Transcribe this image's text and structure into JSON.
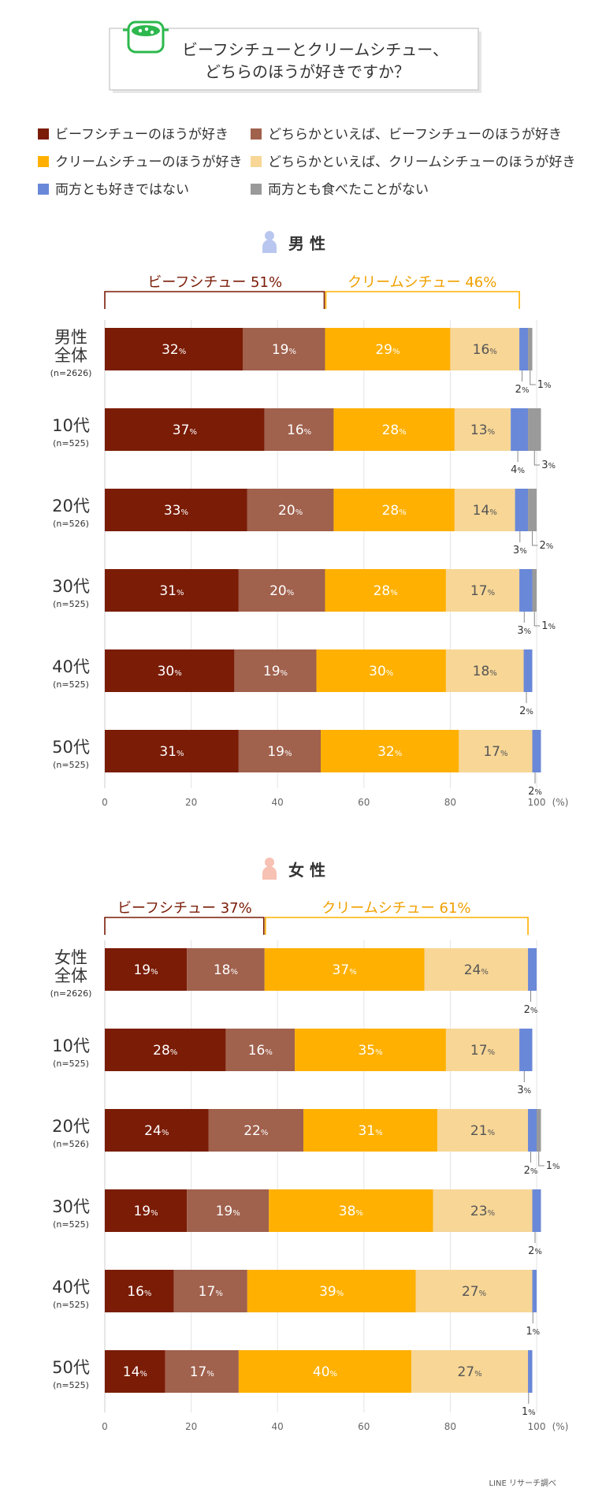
{
  "title_lines": [
    "ビーフシチューとクリームシチュー、",
    "どちらのほうが好きですか？"
  ],
  "colors": {
    "beef": "#7a1c06",
    "rather_beef": "#a0614d",
    "cream": "#ffb000",
    "rather_cream": "#f7d696",
    "neither": "#6a88d8",
    "never_eaten": "#9a9a9a",
    "beef_text": "#7a1c06",
    "cream_text": "#f0a000",
    "icon_green": "#2db84d"
  },
  "chart_data": {
    "type": "bar",
    "orientation": "horizontal",
    "stacked": true,
    "legend": [
      {
        "key": "beef",
        "label": "ビーフシチューのほうが好き"
      },
      {
        "key": "rather_beef",
        "label": "どちらかといえば、ビーフシチューのほうが好き"
      },
      {
        "key": "cream",
        "label": "クリームシチューのほうが好き"
      },
      {
        "key": "rather_cream",
        "label": "どちらかといえば、クリームシチューのほうが好き"
      },
      {
        "key": "neither",
        "label": "両方とも好きではない"
      },
      {
        "key": "never_eaten",
        "label": "両方とも食べたことがない"
      }
    ],
    "x_ticks": [
      "0",
      "20",
      "40",
      "60",
      "80",
      "100"
    ],
    "x_unit": "(%)",
    "xlim": [
      0,
      100
    ],
    "source": "LINE リサーチ調べ",
    "panels": [
      {
        "section_label": "男 性",
        "beef_total_label": "ビーフシチュー 51%",
        "cream_total_label": "クリームシチュー 46%",
        "beef_total": 51,
        "rows": [
          {
            "label_lines": [
              "男性",
              "全体"
            ],
            "n": "(n=2626)",
            "values": [
              32,
              19,
              29,
              16,
              2,
              1
            ]
          },
          {
            "label_lines": [
              "10代"
            ],
            "n": "(n=525)",
            "values": [
              37,
              16,
              28,
              13,
              4,
              3
            ]
          },
          {
            "label_lines": [
              "20代"
            ],
            "n": "(n=526)",
            "values": [
              33,
              20,
              28,
              14,
              3,
              2
            ]
          },
          {
            "label_lines": [
              "30代"
            ],
            "n": "(n=525)",
            "values": [
              31,
              20,
              28,
              17,
              3,
              1
            ]
          },
          {
            "label_lines": [
              "40代"
            ],
            "n": "(n=525)",
            "values": [
              30,
              19,
              30,
              18,
              2,
              0
            ]
          },
          {
            "label_lines": [
              "50代"
            ],
            "n": "(n=525)",
            "values": [
              31,
              19,
              32,
              17,
              2,
              0
            ]
          }
        ]
      },
      {
        "section_label": "女 性",
        "beef_total_label": "ビーフシチュー 37%",
        "cream_total_label": "クリームシチュー 61%",
        "beef_total": 37,
        "rows": [
          {
            "label_lines": [
              "女性",
              "全体"
            ],
            "n": "(n=2626)",
            "values": [
              19,
              18,
              37,
              24,
              2,
              0
            ]
          },
          {
            "label_lines": [
              "10代"
            ],
            "n": "(n=525)",
            "values": [
              28,
              16,
              35,
              17,
              3,
              0
            ]
          },
          {
            "label_lines": [
              "20代"
            ],
            "n": "(n=526)",
            "values": [
              24,
              22,
              31,
              21,
              2,
              1
            ]
          },
          {
            "label_lines": [
              "30代"
            ],
            "n": "(n=525)",
            "values": [
              19,
              19,
              38,
              23,
              2,
              0
            ]
          },
          {
            "label_lines": [
              "40代"
            ],
            "n": "(n=525)",
            "values": [
              16,
              17,
              39,
              27,
              1,
              0
            ]
          },
          {
            "label_lines": [
              "50代"
            ],
            "n": "(n=525)",
            "values": [
              14,
              17,
              40,
              27,
              1,
              0
            ]
          }
        ]
      }
    ]
  }
}
